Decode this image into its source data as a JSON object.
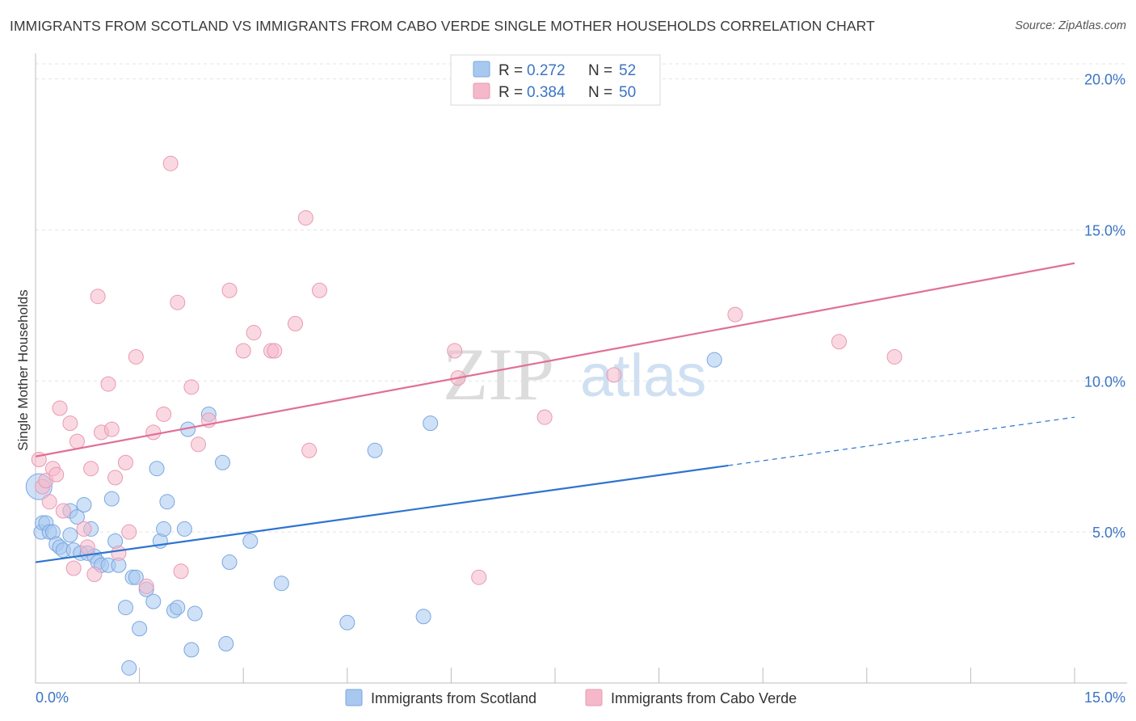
{
  "header": {
    "title": "IMMIGRANTS FROM SCOTLAND VS IMMIGRANTS FROM CABO VERDE SINGLE MOTHER HOUSEHOLDS CORRELATION CHART",
    "source": "Source: ZipAtlas.com"
  },
  "watermark": {
    "zip": "ZIP",
    "atlas": "atlas"
  },
  "legend_top": [
    {
      "r_label": "R =",
      "r_value": "0.272",
      "n_label": "N =",
      "n_value": "52",
      "color": "#a8c8f0"
    },
    {
      "r_label": "R =",
      "r_value": "0.384",
      "n_label": "N =",
      "n_value": "50",
      "color": "#f5b8cb"
    }
  ],
  "legend_bottom": [
    {
      "label": "Immigrants from Scotland",
      "color": "#a8c8f0"
    },
    {
      "label": "Immigrants from Cabo Verde",
      "color": "#f5b8cb"
    }
  ],
  "chart_data": {
    "type": "scatter",
    "title": "IMMIGRANTS FROM SCOTLAND VS IMMIGRANTS FROM CABO VERDE SINGLE MOTHER HOUSEHOLDS CORRELATION CHART",
    "xlabel": "",
    "ylabel": "Single Mother Households",
    "xlim": [
      0,
      15
    ],
    "ylim": [
      0,
      20.5
    ],
    "x_tick_labels": [
      "0.0%",
      "15.0%"
    ],
    "y_ticks": [
      5,
      10,
      15,
      20
    ],
    "y_tick_labels": [
      "5.0%",
      "10.0%",
      "15.0%",
      "20.0%"
    ],
    "grid": true,
    "legend_position": "top-center",
    "series": [
      {
        "name": "Immigrants from Scotland",
        "color": "#a8c8f0",
        "line_color": "#2e74cf",
        "trend": {
          "x0": 0,
          "y0": 4.0,
          "x1": 10.0,
          "y1": 7.2,
          "dash_to_x": 15.0,
          "dash_to_y": 8.8
        },
        "points": [
          [
            0.05,
            6.5
          ],
          [
            0.08,
            5.0
          ],
          [
            0.1,
            5.3
          ],
          [
            0.15,
            5.3
          ],
          [
            0.2,
            5.0
          ],
          [
            0.25,
            5.0
          ],
          [
            0.3,
            4.6
          ],
          [
            0.35,
            4.5
          ],
          [
            0.4,
            4.4
          ],
          [
            0.5,
            5.7
          ],
          [
            0.5,
            4.9
          ],
          [
            0.55,
            4.4
          ],
          [
            0.6,
            5.5
          ],
          [
            0.65,
            4.3
          ],
          [
            0.7,
            5.9
          ],
          [
            0.75,
            4.3
          ],
          [
            0.8,
            5.1
          ],
          [
            0.85,
            4.2
          ],
          [
            0.9,
            4.0
          ],
          [
            0.95,
            3.9
          ],
          [
            1.05,
            3.9
          ],
          [
            1.1,
            6.1
          ],
          [
            1.15,
            4.7
          ],
          [
            1.2,
            3.9
          ],
          [
            1.3,
            2.5
          ],
          [
            1.35,
            0.5
          ],
          [
            1.4,
            3.5
          ],
          [
            1.45,
            3.5
          ],
          [
            1.5,
            1.8
          ],
          [
            1.6,
            3.1
          ],
          [
            1.7,
            2.7
          ],
          [
            1.75,
            7.1
          ],
          [
            1.8,
            4.7
          ],
          [
            1.85,
            5.1
          ],
          [
            1.9,
            6.0
          ],
          [
            2.0,
            2.4
          ],
          [
            2.05,
            2.5
          ],
          [
            2.15,
            5.1
          ],
          [
            2.2,
            8.4
          ],
          [
            2.25,
            1.1
          ],
          [
            2.3,
            2.3
          ],
          [
            2.5,
            8.9
          ],
          [
            2.7,
            7.3
          ],
          [
            2.75,
            1.3
          ],
          [
            2.8,
            4.0
          ],
          [
            3.1,
            4.7
          ],
          [
            3.55,
            3.3
          ],
          [
            4.5,
            2.0
          ],
          [
            4.9,
            7.7
          ],
          [
            5.6,
            2.2
          ],
          [
            5.7,
            8.6
          ],
          [
            9.8,
            10.7
          ]
        ]
      },
      {
        "name": "Immigrants from Cabo Verde",
        "color": "#f5b8cb",
        "line_color": "#e07098",
        "trend": {
          "x0": 0,
          "y0": 7.5,
          "x1": 15.0,
          "y1": 13.9
        },
        "points": [
          [
            0.05,
            7.4
          ],
          [
            0.1,
            6.5
          ],
          [
            0.15,
            6.7
          ],
          [
            0.2,
            6.0
          ],
          [
            0.25,
            7.1
          ],
          [
            0.3,
            6.9
          ],
          [
            0.35,
            9.1
          ],
          [
            0.4,
            5.7
          ],
          [
            0.5,
            8.6
          ],
          [
            0.55,
            3.8
          ],
          [
            0.6,
            8.0
          ],
          [
            0.7,
            5.1
          ],
          [
            0.75,
            4.5
          ],
          [
            0.8,
            7.1
          ],
          [
            0.85,
            3.6
          ],
          [
            0.9,
            12.8
          ],
          [
            0.95,
            8.3
          ],
          [
            1.05,
            9.9
          ],
          [
            1.1,
            8.4
          ],
          [
            1.15,
            6.8
          ],
          [
            1.2,
            4.3
          ],
          [
            1.3,
            7.3
          ],
          [
            1.35,
            5.0
          ],
          [
            1.45,
            10.8
          ],
          [
            1.6,
            3.2
          ],
          [
            1.7,
            8.3
          ],
          [
            1.85,
            8.9
          ],
          [
            1.95,
            17.2
          ],
          [
            2.05,
            12.6
          ],
          [
            2.1,
            3.7
          ],
          [
            2.25,
            9.8
          ],
          [
            2.35,
            7.9
          ],
          [
            2.5,
            8.7
          ],
          [
            2.8,
            13.0
          ],
          [
            3.0,
            11.0
          ],
          [
            3.15,
            11.6
          ],
          [
            3.4,
            11.0
          ],
          [
            3.45,
            11.0
          ],
          [
            3.75,
            11.9
          ],
          [
            3.9,
            15.4
          ],
          [
            3.95,
            7.7
          ],
          [
            4.1,
            13.0
          ],
          [
            6.05,
            11.0
          ],
          [
            6.1,
            10.1
          ],
          [
            6.4,
            3.5
          ],
          [
            7.35,
            8.8
          ],
          [
            8.35,
            10.2
          ],
          [
            10.1,
            12.2
          ],
          [
            11.6,
            11.3
          ],
          [
            12.4,
            10.8
          ]
        ]
      }
    ]
  }
}
